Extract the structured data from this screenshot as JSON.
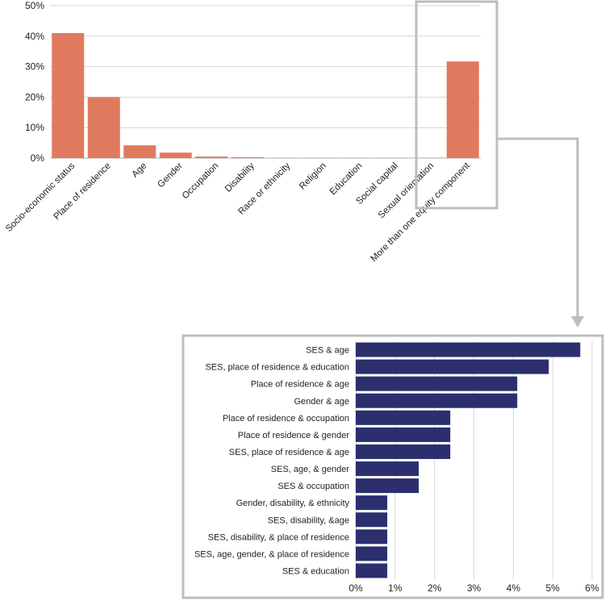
{
  "chart_data": [
    {
      "type": "bar",
      "orientation": "vertical",
      "title": "",
      "xlabel": "",
      "ylabel": "",
      "ylim": [
        0,
        50
      ],
      "yticks": [
        0,
        10,
        20,
        30,
        40,
        50
      ],
      "ytick_labels": [
        "0%",
        "10%",
        "20%",
        "30%",
        "40%",
        "50%"
      ],
      "grid": true,
      "color": "#E07A5F",
      "categories": [
        "Socio-economic status",
        "Place of residence",
        "Age",
        "Gender",
        "Occupation",
        "Disability",
        "Race or ethnicity",
        "Religion",
        "Education",
        "Social capital",
        "Sexual orientation",
        "More than one equity component"
      ],
      "values": [
        41,
        20,
        4.2,
        1.8,
        0.5,
        0.3,
        0.1,
        0.1,
        0.1,
        0.1,
        0.1,
        31.7
      ],
      "highlight": "More than one equity component"
    },
    {
      "type": "bar",
      "orientation": "horizontal",
      "title": "",
      "xlabel": "",
      "ylabel": "",
      "xlim": [
        0,
        6
      ],
      "xticks": [
        0,
        1,
        2,
        3,
        4,
        5,
        6
      ],
      "xtick_labels": [
        "0%",
        "1%",
        "2%",
        "3%",
        "4%",
        "5%",
        "6%"
      ],
      "grid": true,
      "color": "#2B2F6E",
      "categories": [
        "SES & age",
        "SES, place of residence & education",
        "Place of residence & age",
        "Gender & age",
        "Place of residence & occupation",
        "Place of residence & gender",
        "SES, place of residence & age",
        "SES, age, & gender",
        "SES & occupation",
        "Gender, disability, & ethnicity",
        "SES, disability, &age",
        "SES, disability, & place of residence",
        "SES, age, gender, & place of residence",
        "SES & education"
      ],
      "values": [
        5.7,
        4.9,
        4.1,
        4.1,
        2.4,
        2.4,
        2.4,
        1.6,
        1.6,
        0.8,
        0.8,
        0.8,
        0.8,
        0.8
      ]
    }
  ],
  "colors": {
    "top_bar": "#E07A5F",
    "bottom_bar": "#2B2F6E",
    "grid": "#d6d6d6",
    "callout": "#bdbdbd"
  }
}
